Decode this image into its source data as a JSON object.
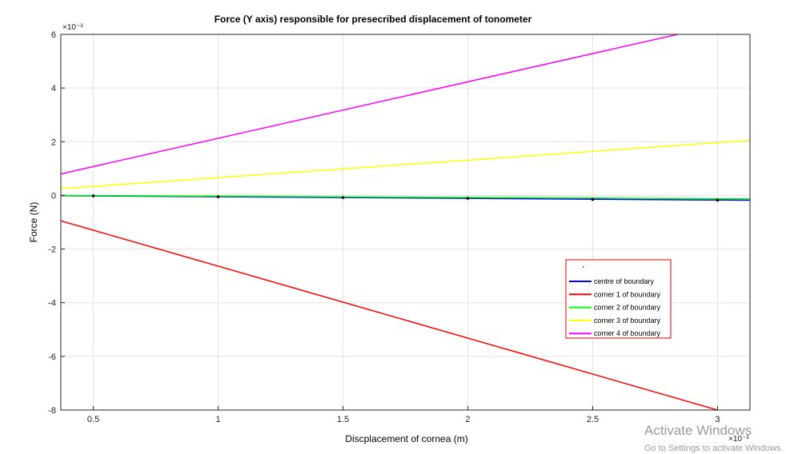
{
  "chart_data": {
    "type": "line",
    "title": "Force (Y axis) responsible for presecribed displacement of tonometer",
    "xlabel": "Discplacement of cornea (m)",
    "ylabel": "Force (N)",
    "x_exponent_label": "×10⁻³",
    "y_exponent_label": "×10⁻³",
    "xlim": [
      0.00037,
      0.00313
    ],
    "ylim": [
      -0.008,
      0.006
    ],
    "x_ticks": [
      0.0005,
      0.001,
      0.0015,
      0.002,
      0.0025,
      0.003
    ],
    "x_tick_labels": [
      "0.5",
      "1",
      "1.5",
      "2",
      "2.5",
      "3"
    ],
    "y_ticks": [
      -0.008,
      -0.006,
      -0.004,
      -0.002,
      0,
      0.002,
      0.004,
      0.006
    ],
    "y_tick_labels": [
      "-8",
      "-6",
      "-4",
      "-2",
      "0",
      "2",
      "4",
      "6"
    ],
    "grid": true,
    "legend_placement": "bottom-right",
    "legend_marker_entry": "·",
    "series": [
      {
        "name": "centre of boundary",
        "color": "#0000ff",
        "x": [
          0.00037,
          0.00313
        ],
        "y": [
          -1e-05,
          -0.00018
        ]
      },
      {
        "name": "corner 1 of boundary",
        "color": "#ff0000",
        "x": [
          0.00037,
          0.003
        ],
        "y": [
          -0.00095,
          -0.008
        ]
      },
      {
        "name": "corner 2 of boundary",
        "color": "#00ff00",
        "x": [
          0.00037,
          0.00313
        ],
        "y": [
          0.0,
          -0.00013
        ]
      },
      {
        "name": "corner 3 of boundary",
        "color": "#ffff00",
        "x": [
          0.00037,
          0.00313
        ],
        "y": [
          0.00025,
          0.00205
        ]
      },
      {
        "name": "corner 4 of boundary",
        "color": "#ff00ff",
        "x": [
          0.00037,
          0.00284
        ],
        "y": [
          0.0008,
          0.006
        ]
      }
    ],
    "markers": {
      "color": "#000000",
      "x": [
        0.0005,
        0.001,
        0.0015,
        0.002,
        0.0025,
        0.003
      ],
      "y": [
        -2e-05,
        -5e-05,
        -8e-05,
        -0.00011,
        -0.00015,
        -0.00018
      ]
    }
  },
  "watermark": {
    "line1": "Activate Windows",
    "line2": "Go to Settings to activate Windows."
  }
}
